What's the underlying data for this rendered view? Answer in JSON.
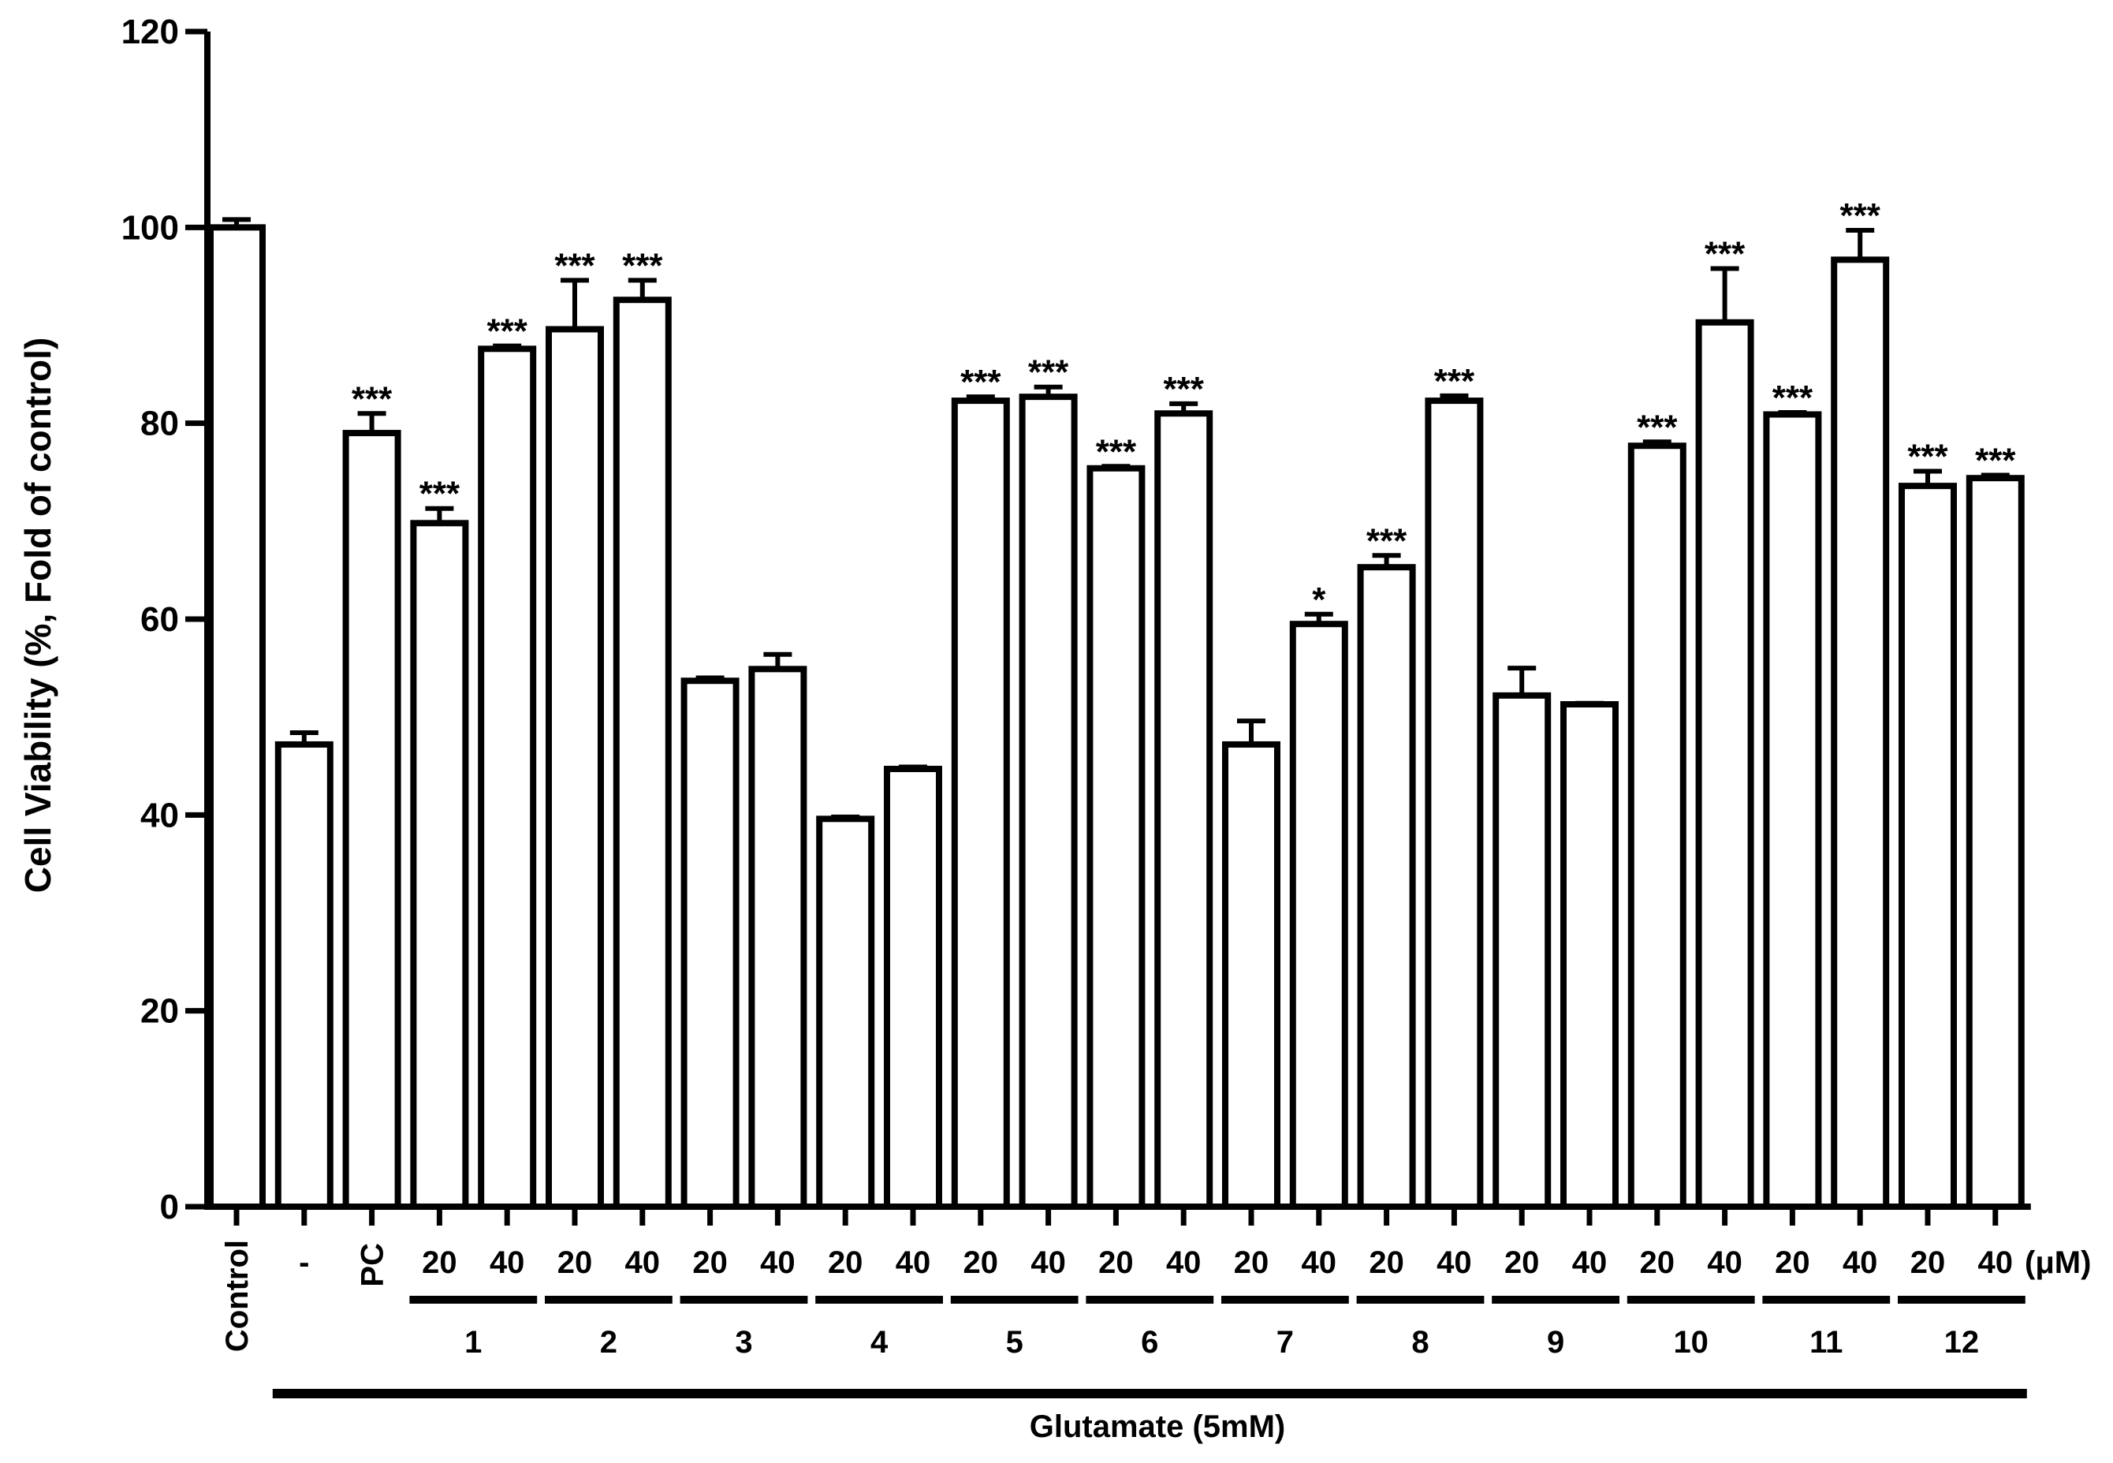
{
  "chart_data": {
    "type": "bar",
    "title": "",
    "ylabel": "Cell Viability (%, Fold of control)",
    "xlabel": "Glutamate (5mM)",
    "ylim": [
      0,
      120
    ],
    "yticks": [
      0,
      20,
      40,
      60,
      80,
      100,
      120
    ],
    "unit_label": "(μM)",
    "grid": false,
    "legend": "none",
    "bars": [
      {
        "label": "Control",
        "group": null,
        "value": 100.0,
        "error": 0.8,
        "sig": ""
      },
      {
        "label": "-",
        "group": null,
        "value": 47.2,
        "error": 1.2,
        "sig": ""
      },
      {
        "label": "PC",
        "group": null,
        "value": 79.0,
        "error": 2.0,
        "sig": "***"
      },
      {
        "label": "20",
        "group": "1",
        "value": 69.8,
        "error": 1.5,
        "sig": "***"
      },
      {
        "label": "40",
        "group": "1",
        "value": 87.6,
        "error": 0.3,
        "sig": "***"
      },
      {
        "label": "20",
        "group": "2",
        "value": 89.6,
        "error": 5.0,
        "sig": "***"
      },
      {
        "label": "40",
        "group": "2",
        "value": 92.6,
        "error": 2.0,
        "sig": "***"
      },
      {
        "label": "20",
        "group": "3",
        "value": 53.7,
        "error": 0.3,
        "sig": ""
      },
      {
        "label": "40",
        "group": "3",
        "value": 54.9,
        "error": 1.5,
        "sig": ""
      },
      {
        "label": "20",
        "group": "4",
        "value": 39.6,
        "error": 0.2,
        "sig": ""
      },
      {
        "label": "40",
        "group": "4",
        "value": 44.7,
        "error": 0.2,
        "sig": ""
      },
      {
        "label": "20",
        "group": "5",
        "value": 82.3,
        "error": 0.4,
        "sig": "***"
      },
      {
        "label": "40",
        "group": "5",
        "value": 82.7,
        "error": 1.0,
        "sig": "***"
      },
      {
        "label": "20",
        "group": "6",
        "value": 75.4,
        "error": 0.2,
        "sig": "***"
      },
      {
        "label": "40",
        "group": "6",
        "value": 81.0,
        "error": 1.0,
        "sig": "***"
      },
      {
        "label": "20",
        "group": "7",
        "value": 47.2,
        "error": 2.4,
        "sig": ""
      },
      {
        "label": "40",
        "group": "7",
        "value": 59.5,
        "error": 1.0,
        "sig": "*"
      },
      {
        "label": "20",
        "group": "8",
        "value": 65.3,
        "error": 1.2,
        "sig": "***"
      },
      {
        "label": "40",
        "group": "8",
        "value": 82.3,
        "error": 0.5,
        "sig": "***"
      },
      {
        "label": "20",
        "group": "9",
        "value": 52.2,
        "error": 2.8,
        "sig": ""
      },
      {
        "label": "40",
        "group": "9",
        "value": 51.3,
        "error": 0.1,
        "sig": ""
      },
      {
        "label": "20",
        "group": "10",
        "value": 77.7,
        "error": 0.4,
        "sig": "***"
      },
      {
        "label": "40",
        "group": "10",
        "value": 90.3,
        "error": 5.5,
        "sig": "***"
      },
      {
        "label": "20",
        "group": "11",
        "value": 80.9,
        "error": 0.2,
        "sig": "***"
      },
      {
        "label": "40",
        "group": "11",
        "value": 96.7,
        "error": 3.0,
        "sig": "***"
      },
      {
        "label": "20",
        "group": "12",
        "value": 73.6,
        "error": 1.5,
        "sig": "***"
      },
      {
        "label": "40",
        "group": "12",
        "value": 74.4,
        "error": 0.3,
        "sig": "***"
      }
    ],
    "groups": [
      "1",
      "2",
      "3",
      "4",
      "5",
      "6",
      "7",
      "8",
      "9",
      "10",
      "11",
      "12"
    ]
  }
}
